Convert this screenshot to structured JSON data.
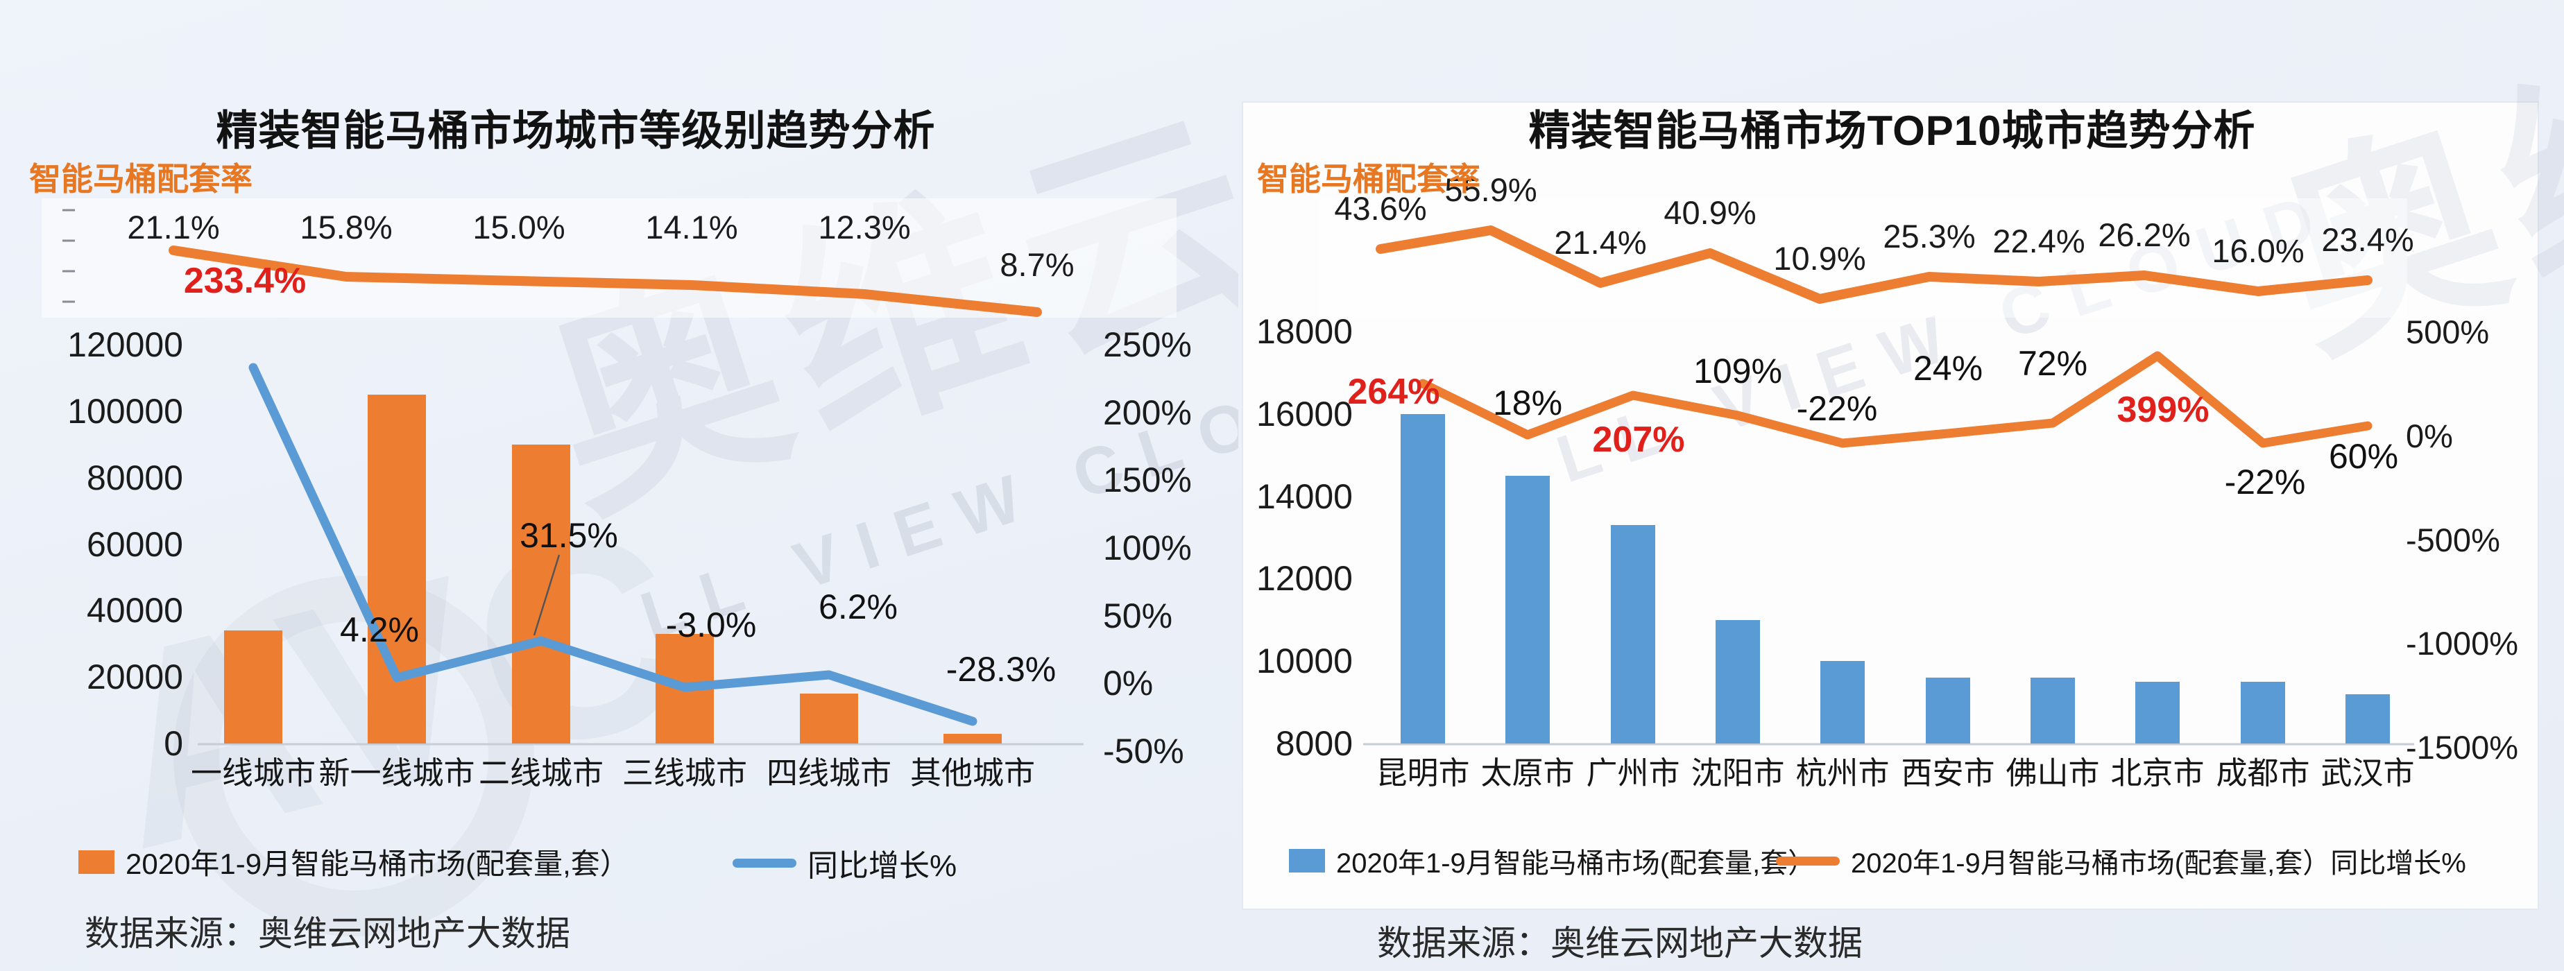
{
  "page": {
    "background": "#ebf0f8"
  },
  "colors": {
    "orange": "#ED7D31",
    "blue": "#5B9BD5",
    "red": "#E0201A",
    "rate_label_orange": "#E87722"
  },
  "watermarks": {
    "brand_cn": "奥维云网",
    "brand_en": "LL VIEW CLOUD",
    "logo": "AVC"
  },
  "chart_data": [
    {
      "type": "bar",
      "title": "精装智能马桶市场城市等级别趋势分析",
      "top_label": "智能马桶配套率",
      "source": "数据来源：奥维云网地产大数据",
      "legend_position": "bottom",
      "grid": false,
      "categories": [
        "一线城市",
        "新一线城市",
        "二线城市",
        "三线城市",
        "四线城市",
        "其他城市"
      ],
      "series": [
        {
          "name": "2020年1-9月智能马桶市场(配套量,套）",
          "type": "bar",
          "axis": "left",
          "color": "#ED7D31",
          "values": [
            34000,
            105000,
            90000,
            33000,
            15000,
            3000
          ]
        },
        {
          "name": "同比增长%",
          "type": "line",
          "axis": "right",
          "color": "#5B9BD5",
          "values": [
            233.4,
            4.2,
            31.5,
            -3.0,
            6.2,
            -28.3
          ],
          "labels": [
            "233.4%",
            "4.2%",
            "31.5%",
            "-3.0%",
            "6.2%",
            "-28.3%"
          ],
          "red_label_indices": [
            0
          ]
        },
        {
          "name": "智能马桶配套率",
          "type": "line",
          "axis": "top-band",
          "color": "#ED7D31",
          "values": [
            21.1,
            15.8,
            15.0,
            14.1,
            12.3,
            8.7
          ],
          "labels": [
            "21.1%",
            "15.8%",
            "15.0%",
            "14.1%",
            "12.3%",
            "8.7%"
          ]
        }
      ],
      "left_axis": {
        "min": 0,
        "max": 120000,
        "ticks": [
          "120000",
          "100000",
          "80000",
          "60000",
          "40000",
          "20000",
          "0"
        ]
      },
      "right_axis": {
        "min": -50,
        "max": 250,
        "ticks": [
          "250%",
          "200%",
          "150%",
          "100%",
          "50%",
          "0%",
          "-50%"
        ]
      }
    },
    {
      "type": "bar",
      "title": "精装智能马桶市场TOP10城市趋势分析",
      "top_label": "智能马桶配套率",
      "source": "数据来源：奥维云网地产大数据",
      "legend_position": "bottom",
      "grid": false,
      "categories": [
        "昆明市",
        "太原市",
        "广州市",
        "沈阳市",
        "杭州市",
        "西安市",
        "佛山市",
        "北京市",
        "成都市",
        "武汉市"
      ],
      "series": [
        {
          "name": "2020年1-9月智能马桶市场(配套量,套）",
          "type": "bar",
          "axis": "left",
          "color": "#5B9BD5",
          "values": [
            16000,
            14500,
            13300,
            11000,
            10000,
            9600,
            9600,
            9500,
            9500,
            9200
          ]
        },
        {
          "name": "2020年1-9月智能马桶市场(配套量,套）同比增长%",
          "type": "line",
          "axis": "right",
          "color": "#ED7D31",
          "values": [
            264,
            18,
            207,
            109,
            -22,
            24,
            72,
            399,
            -22,
            60
          ],
          "labels": [
            "264%",
            "18%",
            "207%",
            "109%",
            "-22%",
            "24%",
            "72%",
            "399%",
            "-22%",
            "60%"
          ],
          "red_label_indices": [
            0,
            2,
            7
          ]
        },
        {
          "name": "智能马桶配套率",
          "type": "line",
          "axis": "top-band",
          "color": "#ED7D31",
          "values": [
            43.6,
            55.9,
            21.4,
            40.9,
            10.9,
            25.3,
            22.4,
            26.2,
            16.0,
            23.4
          ],
          "labels": [
            "43.6%",
            "55.9%",
            "21.4%",
            "40.9%",
            "10.9%",
            "25.3%",
            "22.4%",
            "26.2%",
            "16.0%",
            "23.4%"
          ]
        }
      ],
      "left_axis": {
        "min": 8000,
        "max": 18000,
        "ticks": [
          "18000",
          "16000",
          "14000",
          "12000",
          "10000",
          "8000"
        ]
      },
      "right_axis": {
        "min": -1500,
        "max": 500,
        "ticks": [
          "500%",
          "0%",
          "-500%",
          "-1000%",
          "-1500%"
        ]
      }
    }
  ]
}
